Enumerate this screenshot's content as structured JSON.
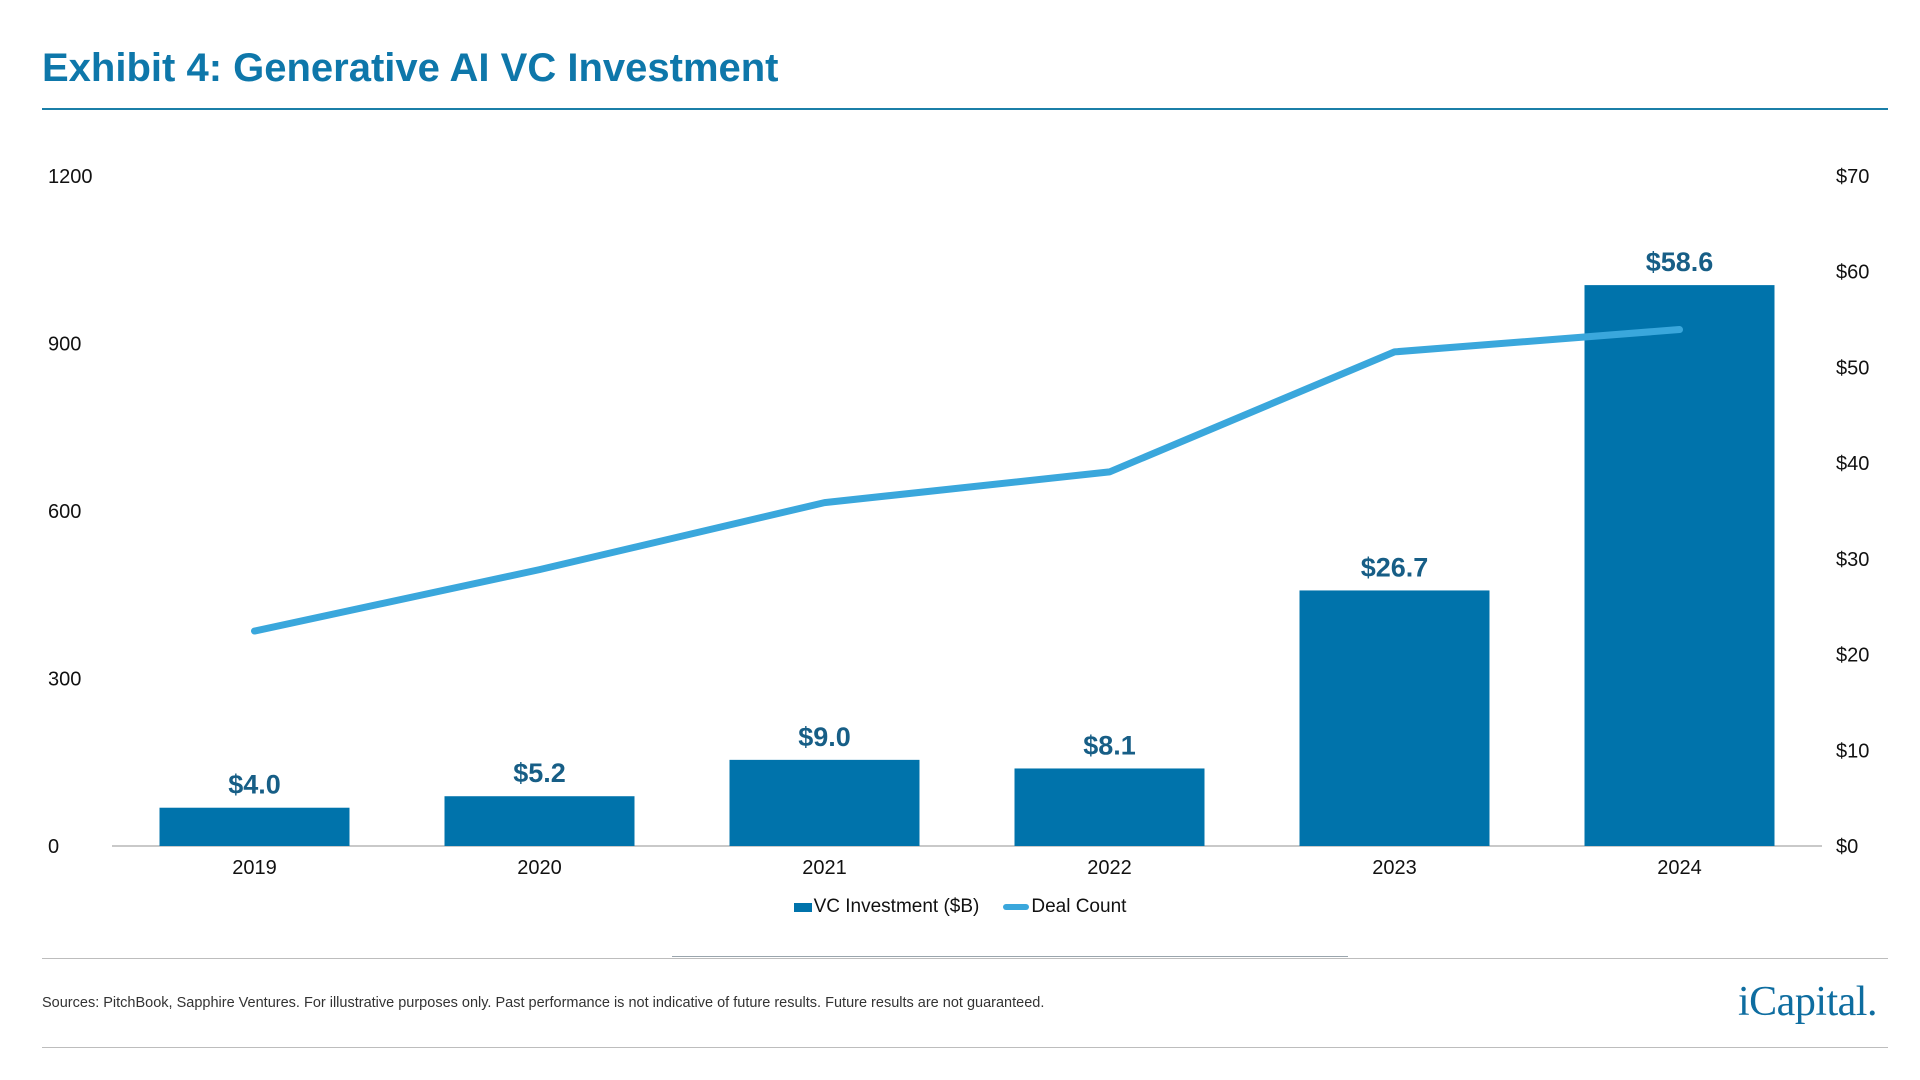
{
  "header": {
    "title": "Exhibit 4: Generative AI VC Investment"
  },
  "chart_data": {
    "type": "bar+line",
    "title": "Exhibit 4: Generative AI VC Investment",
    "categories": [
      "2019",
      "2020",
      "2021",
      "2022",
      "2023",
      "2024"
    ],
    "series": [
      {
        "name": "VC Investment ($B)",
        "type": "bar",
        "axis": "right",
        "values": [
          4.0,
          5.2,
          9.0,
          8.1,
          26.7,
          58.6
        ],
        "labels": [
          "$4.0",
          "$5.2",
          "$9.0",
          "$8.1",
          "$26.7",
          "$58.6"
        ],
        "color": "#0073ab"
      },
      {
        "name": "Deal Count",
        "type": "line",
        "axis": "left",
        "values": [
          385,
          495,
          615,
          670,
          885,
          925
        ],
        "color": "#3aa7dc"
      }
    ],
    "left_axis": {
      "min": 0,
      "max": 1200,
      "ticks": [
        "0",
        "300",
        "600",
        "900",
        "1200"
      ],
      "tick_values": [
        0,
        300,
        600,
        900,
        1200
      ]
    },
    "right_axis": {
      "min": 0,
      "max": 70,
      "ticks": [
        "$0",
        "$10",
        "$20",
        "$30",
        "$40",
        "$50",
        "$60",
        "$70"
      ],
      "tick_values": [
        0,
        10,
        20,
        30,
        40,
        50,
        60,
        70
      ]
    },
    "legend": {
      "position": "bottom-center"
    },
    "label_color": "#175e86"
  },
  "footer": {
    "sources": "Sources: PitchBook, Sapphire Ventures. For illustrative purposes only. Past performance is not indicative of future results. Future results are not guaranteed.",
    "logo": "iCapital."
  }
}
